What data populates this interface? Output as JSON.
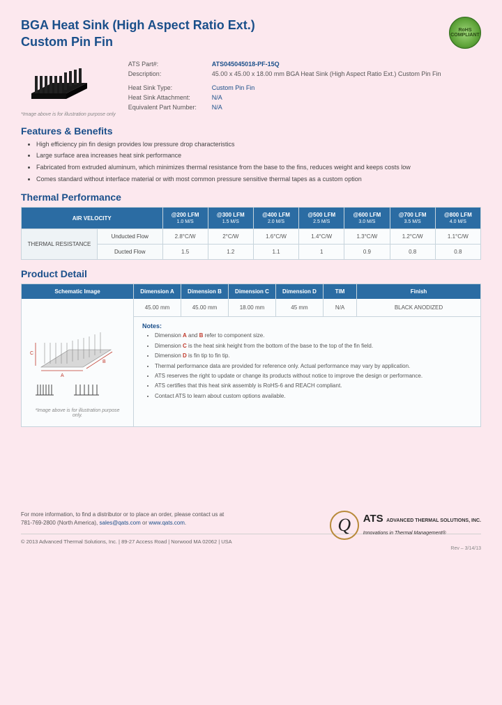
{
  "header": {
    "title_line1": "BGA Heat Sink (High Aspect Ratio Ext.)",
    "title_line2": "Custom Pin Fin",
    "rohs_line1": "RoHS",
    "rohs_line2": "COMPLIANT"
  },
  "specs": {
    "part_label": "ATS Part#:",
    "part_value": "ATS045045018-PF-15Q",
    "desc_label": "Description:",
    "desc_value": "45.00 x 45.00 x 18.00 mm  BGA Heat Sink (High Aspect Ratio Ext.) Custom Pin Fin",
    "type_label": "Heat Sink Type:",
    "type_value": "Custom Pin Fin",
    "attach_label": "Heat Sink Attachment:",
    "attach_value": "N/A",
    "equiv_label": "Equivalent Part Number:",
    "equiv_value": "N/A"
  },
  "img_caption": "*Image above is for illustration purpose only",
  "sections": {
    "features": "Features & Benefits",
    "thermal": "Thermal Performance",
    "detail": "Product Detail"
  },
  "features": [
    "High efficiency pin fin design provides low pressure drop characteristics",
    "Large surface area increases heat sink performance",
    "Fabricated from extruded aluminum, which minimizes thermal resistance from the base to the fins, reduces weight and keeps costs low",
    "Comes standard without interface material or with most common pressure sensitive thermal tapes as a custom option"
  ],
  "thermal": {
    "air_velocity": "AIR VELOCITY",
    "resistance": "THERMAL RESISTANCE",
    "unducted": "Unducted Flow",
    "ducted": "Ducted Flow",
    "cols": [
      {
        "top": "@200 LFM",
        "sub": "1.0 M/S"
      },
      {
        "top": "@300 LFM",
        "sub": "1.5 M/S"
      },
      {
        "top": "@400 LFM",
        "sub": "2.0 M/S"
      },
      {
        "top": "@500 LFM",
        "sub": "2.5 M/S"
      },
      {
        "top": "@600 LFM",
        "sub": "3.0 M/S"
      },
      {
        "top": "@700 LFM",
        "sub": "3.5 M/S"
      },
      {
        "top": "@800 LFM",
        "sub": "4.0 M/S"
      }
    ],
    "unducted_vals": [
      "2.8°C/W",
      "2°C/W",
      "1.6°C/W",
      "1.4°C/W",
      "1.3°C/W",
      "1.2°C/W",
      "1.1°C/W"
    ],
    "ducted_vals": [
      "1.5",
      "1.2",
      "1.1",
      "1",
      "0.9",
      "0.8",
      "0.8"
    ]
  },
  "detail": {
    "schematic_head": "Schematic Image",
    "heads": [
      "Dimension A",
      "Dimension B",
      "Dimension C",
      "Dimension D",
      "TIM",
      "Finish"
    ],
    "vals": [
      "45.00 mm",
      "45.00 mm",
      "18.00 mm",
      "45 mm",
      "N/A",
      "BLACK ANODIZED"
    ],
    "img_caption": "*Image above is for illustration purpose only.",
    "notes_head": "Notes:",
    "notes": [
      "Dimension <span class='red'>A</span> and <span class='red'>B</span> refer to component size.",
      "Dimension <span class='red'>C</span> is the heat sink height from the bottom of the base to the top of the fin field.",
      "Dimension <span class='red'>D</span> is fin tip to fin tip.",
      "Thermal performance data are provided for reference only. Actual performance may vary by application.",
      "ATS reserves the right to update or change its products without notice to improve the design or performance.",
      "ATS certifies that this heat sink assembly is RoHS-6 and REACH compliant.",
      "Contact ATS to learn about custom options available."
    ]
  },
  "footer": {
    "line1": "For more information, to find a distributor or to place an order, please contact us at",
    "phone": "781-769-2800 (North America),",
    "email": "sales@qats.com",
    "or": " or ",
    "web": "www.qats.com",
    "period": ".",
    "copyright": "© 2013 Advanced Thermal Solutions, Inc. | 89-27 Access Road | Norwood MA   02062 | USA",
    "rev": "Rev – 3/14/13",
    "logo_q": "Q",
    "logo_ats": "ATS",
    "logo_full": "ADVANCED THERMAL SOLUTIONS, INC.",
    "logo_tag": "Innovations in Thermal Management®"
  },
  "colors": {
    "page_bg": "#fce8ee",
    "heading": "#1a4f8a",
    "th_bg": "#2b6ca3",
    "border": "#c7d4dc",
    "cell_bg": "#fafcfd"
  }
}
